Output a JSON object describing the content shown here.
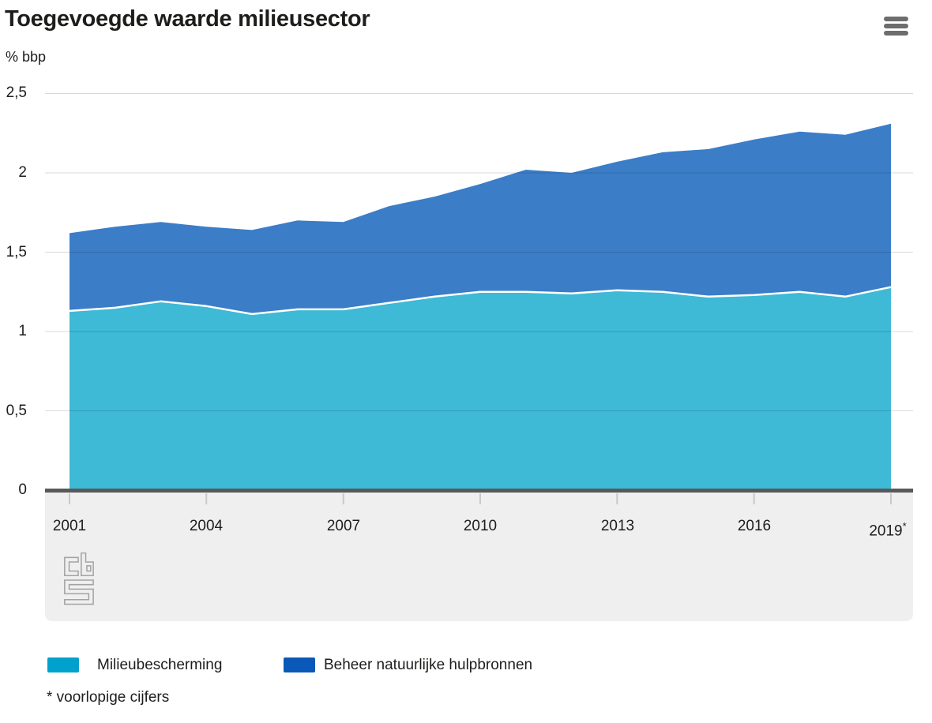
{
  "header": {
    "title": "Toegevoegde waarde milieusector",
    "unit_label": "% bbp"
  },
  "menu": {
    "icon": "hamburger-menu-icon"
  },
  "chart_data": {
    "type": "area",
    "stacked": true,
    "title": "Toegevoegde waarde milieusector",
    "ylabel": "% bbp",
    "xlabel": "",
    "grid": true,
    "legend_position": "bottom",
    "ylim": [
      0,
      2.5
    ],
    "x": [
      2001,
      2002,
      2003,
      2004,
      2005,
      2006,
      2007,
      2008,
      2009,
      2010,
      2011,
      2012,
      2013,
      2014,
      2015,
      2016,
      2017,
      2018,
      2019
    ],
    "series": [
      {
        "name": "Milieubescherming",
        "color": "#00a1cd",
        "fill": "#3eb9d6",
        "values": [
          1.13,
          1.15,
          1.19,
          1.16,
          1.11,
          1.14,
          1.14,
          1.18,
          1.22,
          1.25,
          1.25,
          1.24,
          1.26,
          1.25,
          1.22,
          1.23,
          1.25,
          1.22,
          1.28
        ]
      },
      {
        "name": "Beheer natuurlijke hulpbronnen",
        "color": "#0a58b8",
        "fill": "#3b7dc7",
        "values": [
          0.49,
          0.51,
          0.5,
          0.5,
          0.53,
          0.56,
          0.55,
          0.61,
          0.63,
          0.68,
          0.77,
          0.76,
          0.81,
          0.88,
          0.93,
          0.98,
          1.01,
          1.02,
          1.03
        ]
      }
    ],
    "totals": [
      1.62,
      1.66,
      1.69,
      1.66,
      1.64,
      1.7,
      1.69,
      1.79,
      1.85,
      1.93,
      2.02,
      2.0,
      2.07,
      2.13,
      2.15,
      2.21,
      2.26,
      2.24,
      2.31
    ],
    "ytick_values": [
      2.5,
      2,
      1.5,
      1,
      0.5,
      0
    ],
    "ytick_labels": [
      "2,5",
      "2",
      "1,5",
      "1",
      "0,5",
      "0"
    ],
    "xtick_values": [
      2001,
      2004,
      2007,
      2010,
      2013,
      2016,
      2019
    ],
    "xtick_labels": [
      "2001",
      "2004",
      "2007",
      "2010",
      "2013",
      "2016",
      "2019"
    ],
    "last_year_marker": "*"
  },
  "footnote": "* voorlopige cijfers",
  "logo_name": "cbs-logo"
}
